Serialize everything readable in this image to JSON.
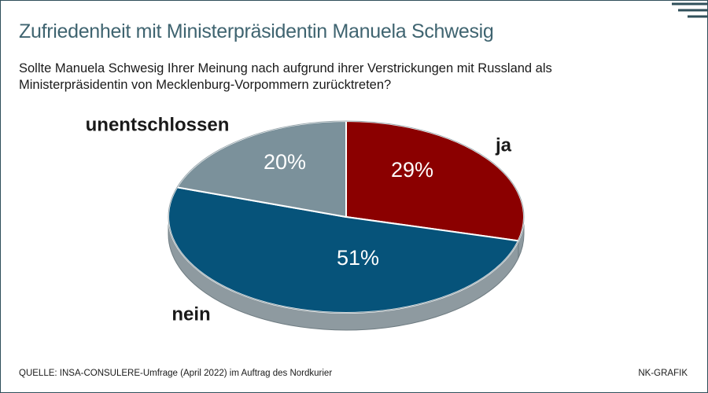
{
  "header": {
    "title": "Zufriedenheit mit Ministerpräsidentin Manuela Schwesig",
    "question": "Sollte Manuela Schwesig Ihrer Meinung nach aufgrund ihrer Verstrickungen mit Russland als Ministerpräsidentin von Mecklenburg-Vorpommern zurücktreten?"
  },
  "chart_data": {
    "type": "pie",
    "title": "Zufriedenheit mit Ministerpräsidentin Manuela Schwesig",
    "categories": [
      "ja",
      "nein",
      "unentschlossen"
    ],
    "values": [
      29,
      51,
      20
    ],
    "value_labels": [
      "29%",
      "51%",
      "20%"
    ],
    "colors": [
      "#8b0000",
      "#06537a",
      "#7b919b"
    ],
    "style": "3d-tilted"
  },
  "footer": {
    "source": "QUELLE: INSA-CONSULERE-Umfrage (April 2022) im Auftrag des Nordkurier",
    "credit": "NK-GRAFIK"
  }
}
